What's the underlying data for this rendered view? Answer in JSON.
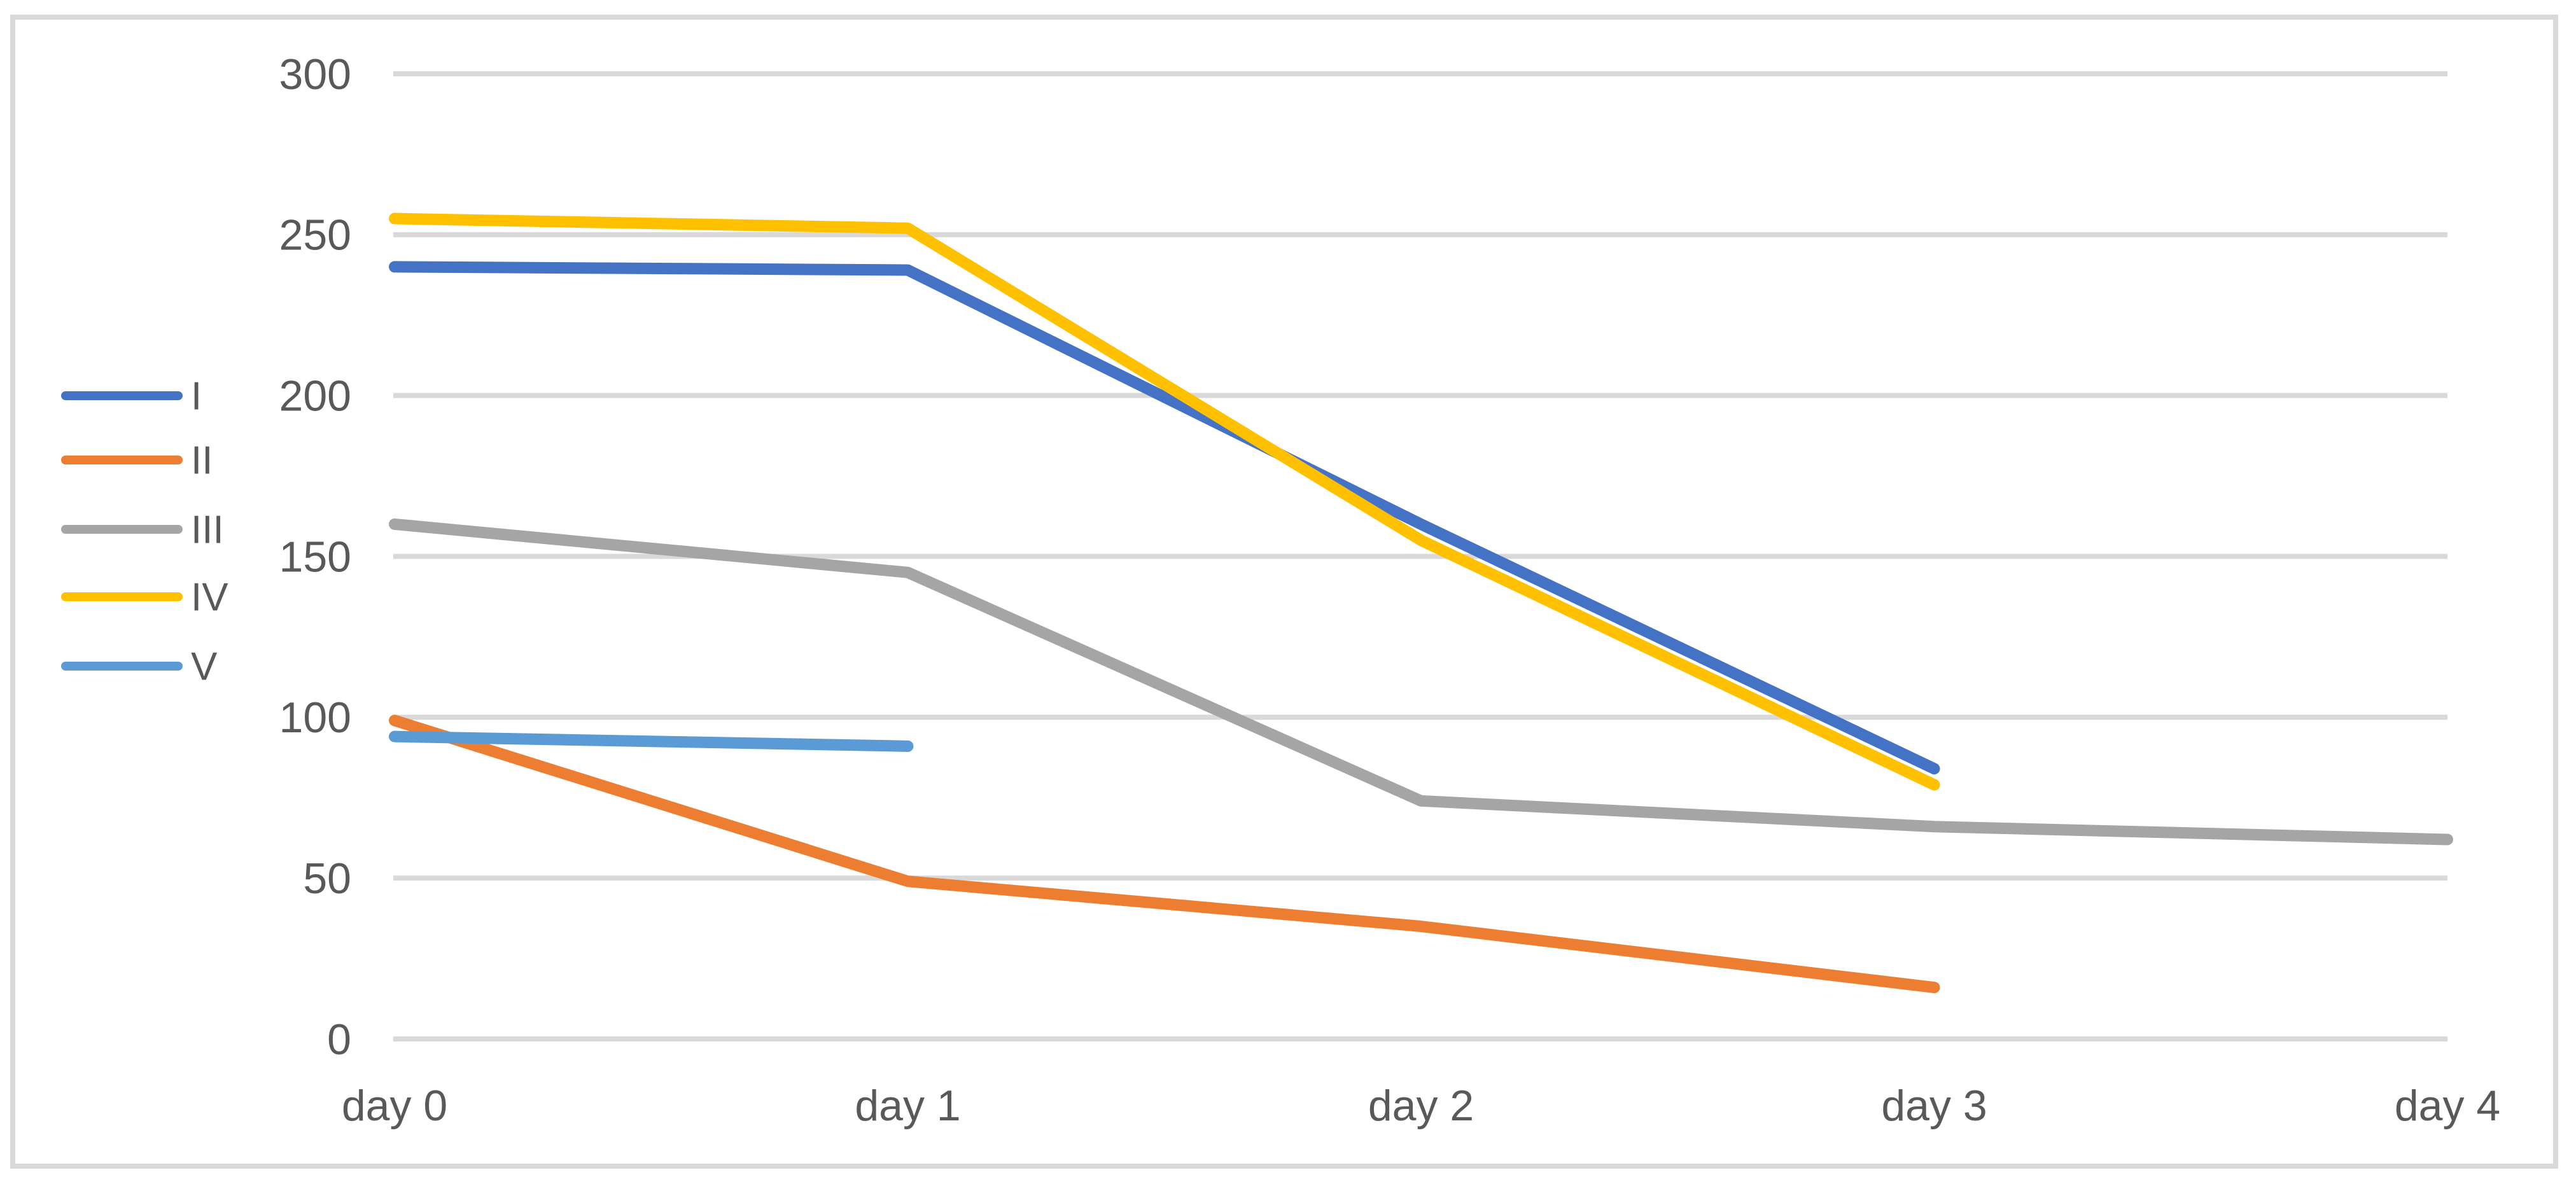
{
  "chart_data": {
    "type": "line",
    "title": "",
    "xlabel": "",
    "ylabel": "",
    "categories": [
      "day 0",
      "day 1",
      "day 2",
      "day 3",
      "day 4"
    ],
    "series": [
      {
        "name": "I",
        "color": "#4472C4",
        "values": [
          240,
          239,
          160,
          84,
          null
        ]
      },
      {
        "name": "II",
        "color": "#ED7D31",
        "values": [
          99,
          49,
          35,
          16,
          null
        ]
      },
      {
        "name": "III",
        "color": "#A5A5A5",
        "values": [
          160,
          145,
          74,
          66,
          62
        ]
      },
      {
        "name": "IV",
        "color": "#FFC000",
        "values": [
          255,
          252,
          155,
          79,
          null
        ]
      },
      {
        "name": "V",
        "color": "#5B9BD5",
        "values": [
          94,
          91,
          null,
          null,
          null
        ]
      }
    ],
    "ylim": [
      0,
      300
    ],
    "yticks": [
      0,
      50,
      100,
      150,
      200,
      250,
      300
    ],
    "grid": "horizontal-only",
    "legend_position": "middle-left",
    "legend_labels": [
      "I",
      "II",
      "III",
      "IV",
      "V"
    ],
    "colors": {
      "gridline": "#D9D9D9",
      "chart_border": "#D9D9D9",
      "axis_text": "#595959",
      "background": "#FFFFFF"
    }
  }
}
